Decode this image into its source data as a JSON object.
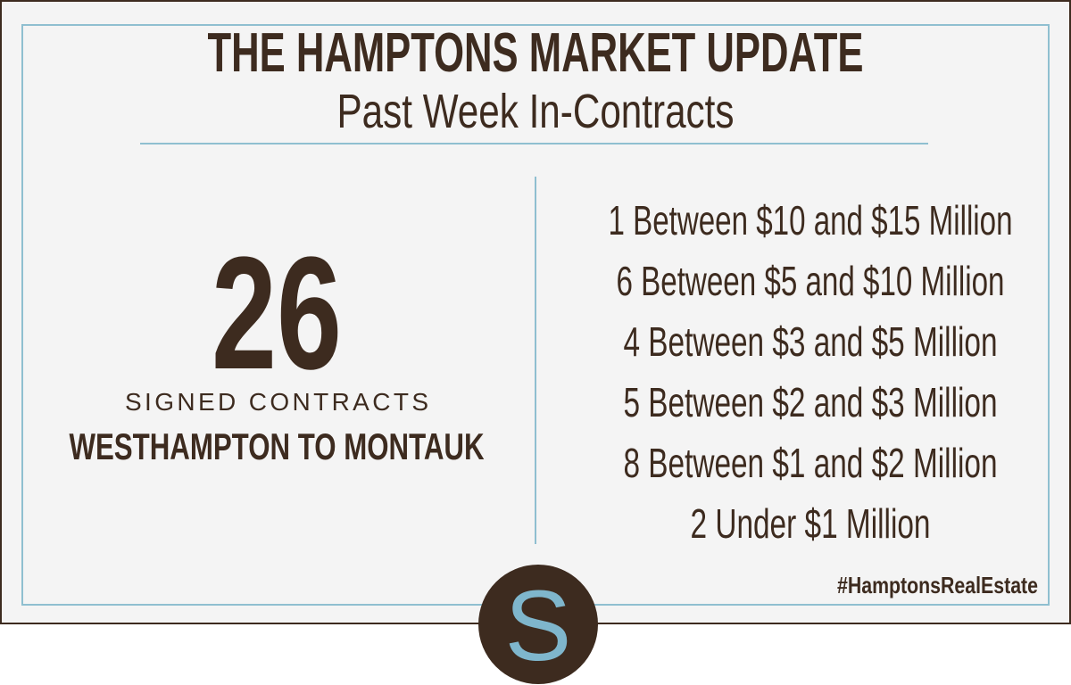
{
  "header": {
    "title": "THE HAMPTONS MARKET UPDATE",
    "subtitle": "Past Week In-Contracts"
  },
  "summary": {
    "count": 26,
    "label": "SIGNED CONTRACTS",
    "region": "WESTHAMPTON TO MONTAUK"
  },
  "breakdown": [
    "1 Between $10 and $15 Million",
    "6 Between $5 and $10 Million",
    "4 Between $3 and $5 Million",
    "5 Between $2 and $3 Million",
    "8 Between $1 and $2 Million",
    "2 Under $1 Million"
  ],
  "hashtag": "#HamptonsRealEstate",
  "logo": "S"
}
